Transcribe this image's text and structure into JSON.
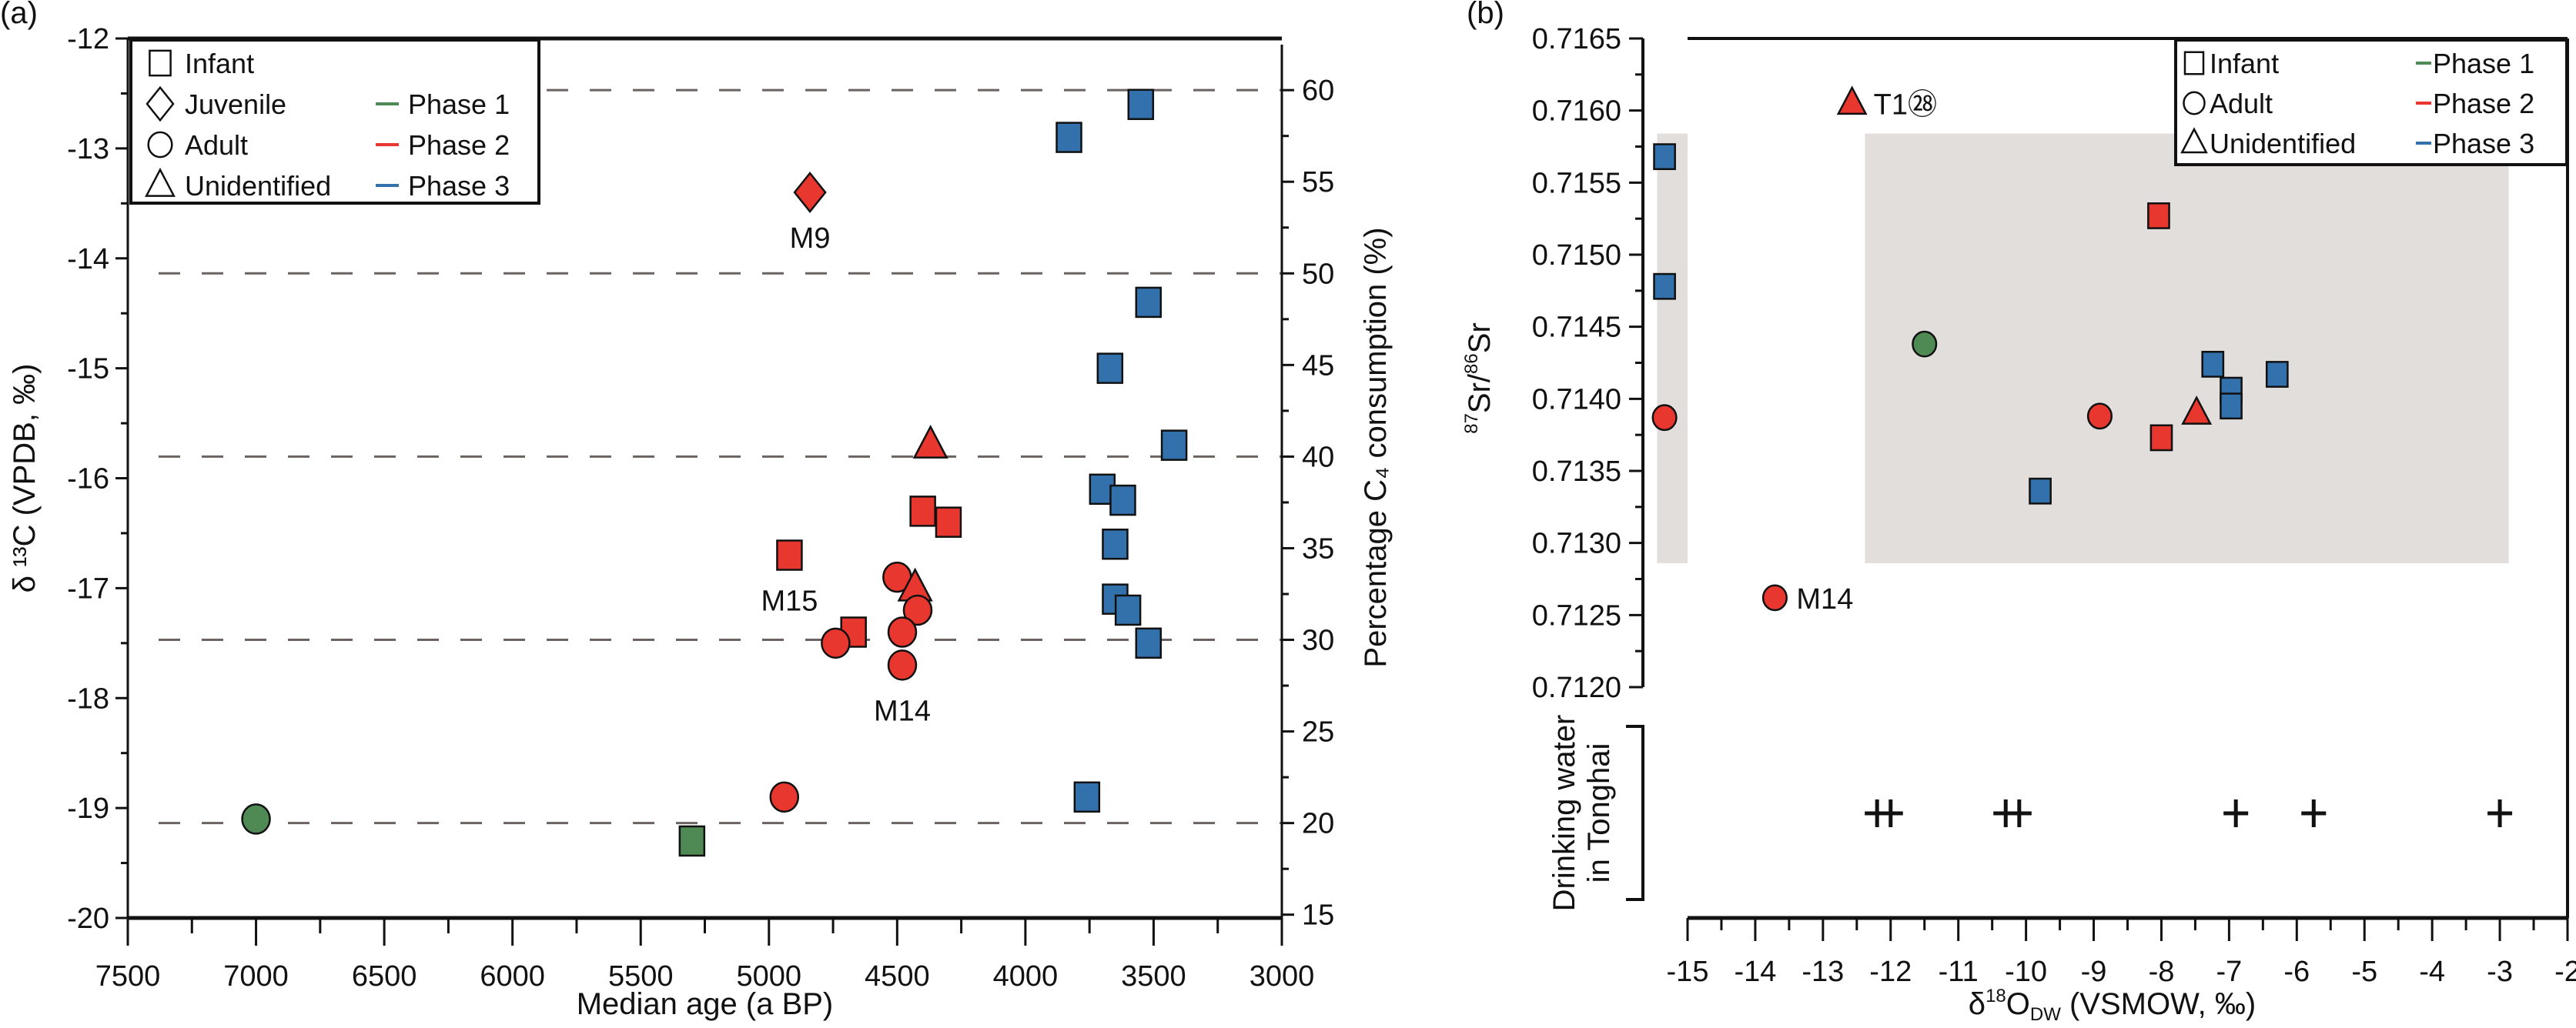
{
  "colors": {
    "phase1": "#4f8a55",
    "phase2": "#e8372f",
    "phase3": "#3371ad",
    "grid_dash": "#6b6361",
    "shade": "#e1dedb",
    "axis": "#111111"
  },
  "chart_data": [
    {
      "panel": "(a)",
      "type": "scatter",
      "xlabel": "Median age (a BP)",
      "ylabel": "δ ¹³C (VPDB, ‰)",
      "ylabel_right": "Percentage C₄ consumption (%)",
      "xlim": [
        7500,
        3000
      ],
      "ylim": [
        -20,
        -12
      ],
      "y_right_ticks": [
        15,
        20,
        25,
        30,
        35,
        40,
        45,
        50,
        55,
        60
      ],
      "y_right_map": {
        "pct_60_at_d13C": -12.47,
        "pct_15_at_d13C": -19.97
      },
      "x_ticks": [
        7500,
        7000,
        6500,
        6000,
        5500,
        5000,
        4500,
        4000,
        3500,
        3000
      ],
      "y_ticks": [
        -12,
        -13,
        -14,
        -15,
        -16,
        -17,
        -18,
        -19,
        -20
      ],
      "dashed_lines_pct": [
        60,
        50,
        40,
        30,
        20
      ],
      "legend": {
        "position": "top-left",
        "shapes": [
          {
            "shape": "square",
            "label": "Infant"
          },
          {
            "shape": "diamond",
            "label": "Juvenile"
          },
          {
            "shape": "circle",
            "label": "Adult"
          },
          {
            "shape": "triangle",
            "label": "Unidentified"
          }
        ],
        "phases": [
          {
            "phase": "phase1",
            "label": "Phase 1"
          },
          {
            "phase": "phase2",
            "label": "Phase 2"
          },
          {
            "phase": "phase3",
            "label": "Phase 3"
          }
        ]
      },
      "points": [
        {
          "x": 7000,
          "y": -19.1,
          "shape": "circle",
          "phase": "phase1"
        },
        {
          "x": 5300,
          "y": -19.3,
          "shape": "square",
          "phase": "phase1"
        },
        {
          "x": 4940,
          "y": -18.9,
          "shape": "circle",
          "phase": "phase2"
        },
        {
          "x": 3760,
          "y": -18.9,
          "shape": "square",
          "phase": "phase3"
        },
        {
          "x": 4840,
          "y": -13.4,
          "shape": "diamond",
          "phase": "phase2",
          "label": "M9",
          "label_pos": "below"
        },
        {
          "x": 3830,
          "y": -12.9,
          "shape": "square",
          "phase": "phase3"
        },
        {
          "x": 3550,
          "y": -12.6,
          "shape": "square",
          "phase": "phase3"
        },
        {
          "x": 3520,
          "y": -14.4,
          "shape": "square",
          "phase": "phase3"
        },
        {
          "x": 3670,
          "y": -15.0,
          "shape": "square",
          "phase": "phase3"
        },
        {
          "x": 4370,
          "y": -15.7,
          "shape": "triangle",
          "phase": "phase2"
        },
        {
          "x": 3420,
          "y": -15.7,
          "shape": "square",
          "phase": "phase3"
        },
        {
          "x": 3700,
          "y": -16.1,
          "shape": "square",
          "phase": "phase3"
        },
        {
          "x": 3620,
          "y": -16.2,
          "shape": "square",
          "phase": "phase3"
        },
        {
          "x": 4400,
          "y": -16.3,
          "shape": "square",
          "phase": "phase2"
        },
        {
          "x": 4300,
          "y": -16.4,
          "shape": "square",
          "phase": "phase2"
        },
        {
          "x": 3650,
          "y": -16.6,
          "shape": "square",
          "phase": "phase3"
        },
        {
          "x": 4920,
          "y": -16.7,
          "shape": "square",
          "phase": "phase2",
          "label": "M15",
          "label_pos": "below"
        },
        {
          "x": 4500,
          "y": -16.9,
          "shape": "circle",
          "phase": "phase2"
        },
        {
          "x": 4430,
          "y": -17.0,
          "shape": "triangle",
          "phase": "phase2"
        },
        {
          "x": 3650,
          "y": -17.1,
          "shape": "square",
          "phase": "phase3"
        },
        {
          "x": 4420,
          "y": -17.2,
          "shape": "circle",
          "phase": "phase2"
        },
        {
          "x": 3600,
          "y": -17.2,
          "shape": "square",
          "phase": "phase3"
        },
        {
          "x": 4670,
          "y": -17.4,
          "shape": "square",
          "phase": "phase2"
        },
        {
          "x": 4480,
          "y": -17.4,
          "shape": "circle",
          "phase": "phase2"
        },
        {
          "x": 4740,
          "y": -17.5,
          "shape": "circle",
          "phase": "phase2"
        },
        {
          "x": 3520,
          "y": -17.5,
          "shape": "square",
          "phase": "phase3"
        },
        {
          "x": 4480,
          "y": -17.7,
          "shape": "circle",
          "phase": "phase2",
          "label": "M14",
          "label_pos": "below"
        }
      ]
    },
    {
      "panel": "(b)",
      "type": "scatter",
      "xlabel": "δ¹⁸O_DW (VSMOW, ‰)",
      "xlabel_main": "δ",
      "xlabel_sup": "18",
      "xlabel_o": "O",
      "xlabel_sub": "DW",
      "xlabel_rest": " (VSMOW, ‰)",
      "ylabel": "⁸⁷Sr/⁸⁶Sr",
      "ylabel_sup1": "87",
      "ylabel_sr1": "Sr/",
      "ylabel_sup2": "86",
      "ylabel_sr2": "Sr",
      "xlim": [
        -15,
        -2
      ],
      "ylim": [
        0.712,
        0.7165
      ],
      "x_ticks": [
        -15,
        -14,
        -13,
        -12,
        -11,
        -10,
        -9,
        -8,
        -7,
        -6,
        -5,
        -4,
        -3,
        -2
      ],
      "y_ticks": [
        "0.7120",
        "0.7125",
        "0.7130",
        "0.7135",
        "0.7140",
        "0.7145",
        "0.7150",
        "0.7155",
        "0.7160",
        "0.7165"
      ],
      "shaded_regions": [
        {
          "x": [
            -15.45,
            -15.0
          ],
          "y": [
            0.71286,
            0.71584
          ]
        },
        {
          "x": [
            -12.38,
            -2.87
          ],
          "y": [
            0.71286,
            0.71584
          ]
        }
      ],
      "legend": {
        "position": "top-right",
        "shapes": [
          {
            "shape": "square",
            "label": "Infant"
          },
          {
            "shape": "circle",
            "label": "Adult"
          },
          {
            "shape": "triangle",
            "label": "Unidentified"
          }
        ],
        "phases": [
          {
            "phase": "phase1",
            "label": "Phase 1"
          },
          {
            "phase": "phase2",
            "label": "Phase 2"
          },
          {
            "phase": "phase3",
            "label": "Phase 3"
          }
        ]
      },
      "points": [
        {
          "x": -12.57,
          "y": 0.71605,
          "shape": "triangle",
          "phase": "phase2",
          "label": "T1㉘",
          "label_pos": "right"
        },
        {
          "x": -15.34,
          "y": 0.71568,
          "shape": "square",
          "phase": "phase3"
        },
        {
          "x": -15.34,
          "y": 0.71478,
          "shape": "square",
          "phase": "phase3"
        },
        {
          "x": -15.34,
          "y": 0.71387,
          "shape": "circle",
          "phase": "phase2"
        },
        {
          "x": -11.5,
          "y": 0.71438,
          "shape": "circle",
          "phase": "phase1"
        },
        {
          "x": -8.04,
          "y": 0.71527,
          "shape": "square",
          "phase": "phase2"
        },
        {
          "x": -7.24,
          "y": 0.71424,
          "shape": "square",
          "phase": "phase3"
        },
        {
          "x": -6.29,
          "y": 0.71417,
          "shape": "square",
          "phase": "phase3"
        },
        {
          "x": -6.97,
          "y": 0.71406,
          "shape": "square",
          "phase": "phase3"
        },
        {
          "x": -6.97,
          "y": 0.71395,
          "shape": "square",
          "phase": "phase3"
        },
        {
          "x": -7.48,
          "y": 0.7139,
          "shape": "triangle",
          "phase": "phase2"
        },
        {
          "x": -8.91,
          "y": 0.71388,
          "shape": "circle",
          "phase": "phase2"
        },
        {
          "x": -8.0,
          "y": 0.71373,
          "shape": "square",
          "phase": "phase2"
        },
        {
          "x": -9.79,
          "y": 0.71336,
          "shape": "square",
          "phase": "phase3"
        },
        {
          "x": -13.71,
          "y": 0.71262,
          "shape": "circle",
          "phase": "phase2",
          "label": "M14",
          "label_pos": "right"
        }
      ],
      "drinking_water": {
        "label_line1": "Drinking water",
        "label_line2": "in Tonghai",
        "x": [
          -12.2,
          -12.0,
          -10.3,
          -10.1,
          -6.9,
          -5.75,
          -3.0
        ]
      }
    }
  ]
}
